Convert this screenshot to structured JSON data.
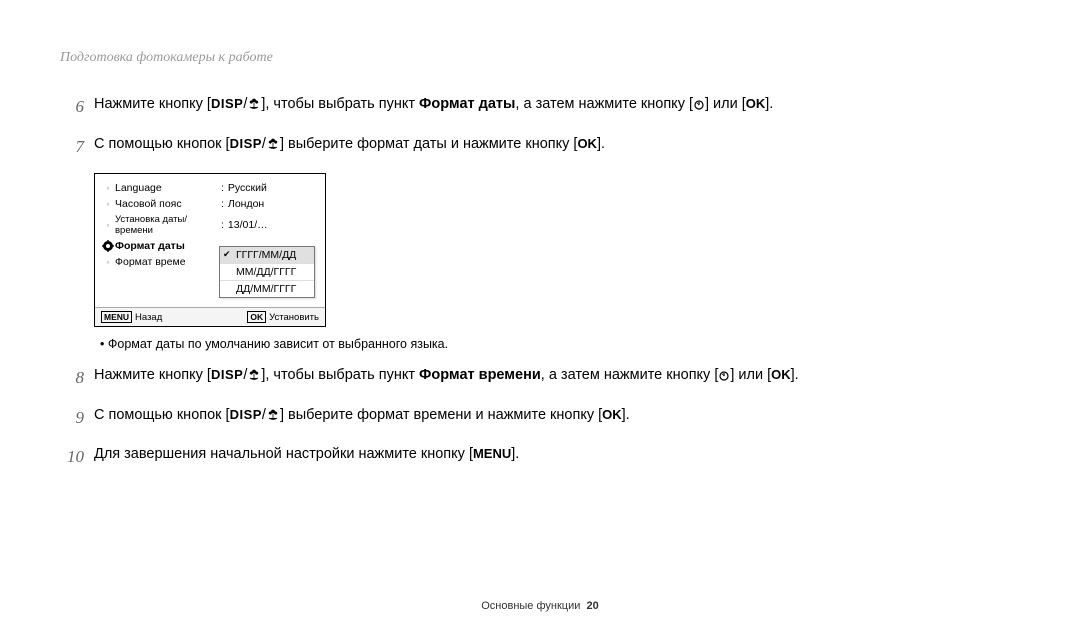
{
  "header": "Подготовка фотокамеры к работе",
  "steps": {
    "s6": {
      "num": "6",
      "pre": "Нажмите кнопку [",
      "mid1": "], чтобы выбрать пункт ",
      "bold1": "Формат даты",
      "mid2": ", а затем нажмите кнопку [",
      "mid3": "] или [",
      "end": "]."
    },
    "s7": {
      "num": "7",
      "pre": "С помощью кнопок [",
      "mid1": "] выберите формат даты и нажмите кнопку [",
      "end": "]."
    },
    "s8": {
      "num": "8",
      "pre": "Нажмите кнопку [",
      "mid1": "], чтобы выбрать пункт ",
      "bold1": "Формат времени",
      "mid2": ", а затем нажмите кнопку [",
      "mid3": "] или [",
      "end": "]."
    },
    "s9": {
      "num": "9",
      "pre": "С помощью кнопок [",
      "mid1": "] выберите формат времени и нажмите кнопку [",
      "end": "]."
    },
    "s10": {
      "num": "10",
      "pre": "Для завершения начальной настройки нажмите кнопку [",
      "end": "]."
    }
  },
  "icons": {
    "disp": "DISP",
    "ok": "OK",
    "menu": "MENU"
  },
  "screen": {
    "rows": [
      {
        "label": "Language",
        "value": "Русский",
        "bullet": true
      },
      {
        "label": "Часовой пояс",
        "value": "Лондон",
        "bullet": true
      },
      {
        "label": "Установка даты/времени",
        "value": "13/01/…",
        "bullet": true,
        "small": true
      },
      {
        "label": "Формат даты",
        "value": "",
        "gear": true,
        "selected": true
      },
      {
        "label": "Формат време",
        "value": "",
        "bullet": true
      }
    ],
    "dropdown": [
      {
        "text": "ГГГГ/ММ/ДД",
        "selected": true
      },
      {
        "text": "ММ/ДД/ГГГГ"
      },
      {
        "text": "ДД/ММ/ГГГГ"
      }
    ],
    "footer": {
      "back_btn": "MENU",
      "back": "Назад",
      "set_btn": "OK",
      "set": "Установить"
    }
  },
  "note": "Формат даты по умолчанию зависит от выбранного языка.",
  "page_footer": {
    "section": "Основные функции",
    "num": "20"
  }
}
